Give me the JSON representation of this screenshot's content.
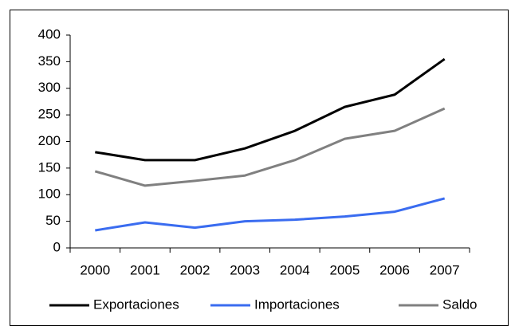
{
  "chart_data": {
    "type": "line",
    "categories": [
      "2000",
      "2001",
      "2002",
      "2003",
      "2004",
      "2005",
      "2006",
      "2007"
    ],
    "series": [
      {
        "name": "Exportaciones",
        "color": "#000000",
        "values": [
          180,
          165,
          165,
          187,
          220,
          265,
          288,
          355
        ]
      },
      {
        "name": "Importaciones",
        "color": "#3a6cf0",
        "values": [
          33,
          48,
          38,
          50,
          53,
          59,
          68,
          93
        ]
      },
      {
        "name": "Saldo",
        "color": "#808080",
        "values": [
          144,
          117,
          126,
          136,
          165,
          205,
          220,
          262
        ]
      }
    ],
    "ylim": [
      0,
      400
    ],
    "yticks": [
      0,
      50,
      100,
      150,
      200,
      250,
      300,
      350,
      400
    ],
    "grid": false,
    "legend": "bottom"
  }
}
